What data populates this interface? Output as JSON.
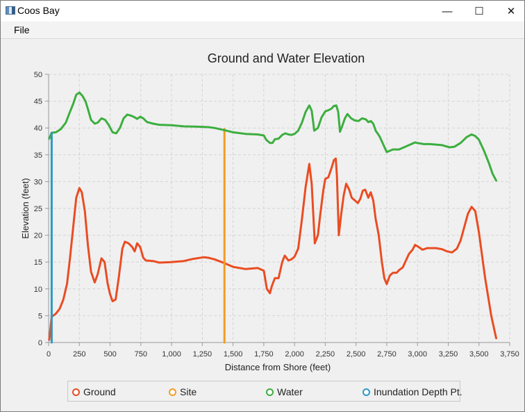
{
  "window": {
    "title": "Coos Bay",
    "min_label": "—",
    "max_label": "☐",
    "close_label": "✕"
  },
  "menu": {
    "file_label": "File"
  },
  "chart_data": {
    "type": "line",
    "title": "Ground and Water Elevation",
    "xlabel": "Distance from Shore (feet)",
    "ylabel": "Elevation (feet)",
    "xlim": [
      0,
      3750
    ],
    "ylim": [
      0,
      50
    ],
    "grid": true,
    "legend_position": "bottom",
    "x_ticks": [
      0,
      250,
      500,
      750,
      1000,
      1250,
      1500,
      1750,
      2000,
      2250,
      2500,
      2750,
      3000,
      3250,
      3500,
      3750
    ],
    "x_tick_labels": [
      "0",
      "250",
      "500",
      "750",
      "1,000",
      "1,250",
      "1,500",
      "1,750",
      "2,000",
      "2,250",
      "2,500",
      "2,750",
      "3,000",
      "3,250",
      "3,500",
      "3,750"
    ],
    "y_ticks": [
      0,
      5,
      10,
      15,
      20,
      25,
      30,
      35,
      40,
      45,
      50
    ],
    "y_tick_labels": [
      "0",
      "5",
      "10",
      "15",
      "20",
      "25",
      "30",
      "35",
      "40",
      "45",
      "50"
    ],
    "series": [
      {
        "name": "Ground",
        "color": "#ea4c22",
        "points": [
          [
            5,
            0.5
          ],
          [
            25,
            4.8
          ],
          [
            60,
            5.4
          ],
          [
            90,
            6.3
          ],
          [
            120,
            8
          ],
          [
            150,
            11
          ],
          [
            175,
            16
          ],
          [
            200,
            21.5
          ],
          [
            225,
            27
          ],
          [
            250,
            28.8
          ],
          [
            270,
            28
          ],
          [
            295,
            24.5
          ],
          [
            320,
            18
          ],
          [
            345,
            13.2
          ],
          [
            375,
            11.2
          ],
          [
            400,
            12.8
          ],
          [
            430,
            15.7
          ],
          [
            455,
            15
          ],
          [
            480,
            11
          ],
          [
            500,
            9
          ],
          [
            520,
            7.7
          ],
          [
            545,
            8
          ],
          [
            570,
            12
          ],
          [
            600,
            17.5
          ],
          [
            620,
            18.8
          ],
          [
            650,
            18.5
          ],
          [
            680,
            17.8
          ],
          [
            700,
            17
          ],
          [
            720,
            18.5
          ],
          [
            745,
            17.8
          ],
          [
            770,
            15.8
          ],
          [
            790,
            15.3
          ],
          [
            850,
            15.2
          ],
          [
            900,
            14.9
          ],
          [
            1000,
            15
          ],
          [
            1100,
            15.2
          ],
          [
            1175,
            15.6
          ],
          [
            1260,
            15.9
          ],
          [
            1300,
            15.8
          ],
          [
            1350,
            15.5
          ],
          [
            1430,
            14.8
          ],
          [
            1500,
            14.1
          ],
          [
            1600,
            13.7
          ],
          [
            1700,
            13.9
          ],
          [
            1750,
            13.4
          ],
          [
            1775,
            10
          ],
          [
            1800,
            9.2
          ],
          [
            1815,
            10.5
          ],
          [
            1840,
            12
          ],
          [
            1870,
            12
          ],
          [
            1900,
            15
          ],
          [
            1920,
            16.2
          ],
          [
            1950,
            15.3
          ],
          [
            1975,
            15.5
          ],
          [
            2000,
            16
          ],
          [
            2030,
            17.5
          ],
          [
            2060,
            23
          ],
          [
            2090,
            29
          ],
          [
            2120,
            33.3
          ],
          [
            2140,
            29.5
          ],
          [
            2165,
            18.5
          ],
          [
            2190,
            20
          ],
          [
            2210,
            24
          ],
          [
            2235,
            28.5
          ],
          [
            2250,
            30.5
          ],
          [
            2275,
            30.8
          ],
          [
            2300,
            32.5
          ],
          [
            2320,
            34
          ],
          [
            2335,
            34.3
          ],
          [
            2345,
            31
          ],
          [
            2360,
            20
          ],
          [
            2380,
            24
          ],
          [
            2400,
            27.5
          ],
          [
            2420,
            29.6
          ],
          [
            2445,
            28.5
          ],
          [
            2465,
            27
          ],
          [
            2490,
            26.5
          ],
          [
            2515,
            26
          ],
          [
            2535,
            26.8
          ],
          [
            2555,
            28.3
          ],
          [
            2575,
            28.5
          ],
          [
            2600,
            27
          ],
          [
            2620,
            28
          ],
          [
            2640,
            26.5
          ],
          [
            2660,
            23
          ],
          [
            2685,
            20
          ],
          [
            2710,
            15
          ],
          [
            2730,
            12
          ],
          [
            2750,
            10.9
          ],
          [
            2775,
            12.5
          ],
          [
            2800,
            13
          ],
          [
            2830,
            13
          ],
          [
            2850,
            13.5
          ],
          [
            2880,
            14
          ],
          [
            2900,
            15
          ],
          [
            2930,
            16.5
          ],
          [
            2960,
            17.3
          ],
          [
            2980,
            18.2
          ],
          [
            3010,
            17.8
          ],
          [
            3040,
            17.3
          ],
          [
            3080,
            17.6
          ],
          [
            3150,
            17.6
          ],
          [
            3200,
            17.4
          ],
          [
            3240,
            17
          ],
          [
            3280,
            16.8
          ],
          [
            3320,
            17.5
          ],
          [
            3350,
            19
          ],
          [
            3380,
            21.5
          ],
          [
            3410,
            24
          ],
          [
            3440,
            25.3
          ],
          [
            3470,
            24.5
          ],
          [
            3500,
            20.5
          ],
          [
            3550,
            12
          ],
          [
            3600,
            5
          ],
          [
            3640,
            0.8
          ]
        ]
      },
      {
        "name": "Site",
        "color": "#f39c20",
        "points": [
          [
            1430,
            0
          ],
          [
            1430,
            39.8
          ]
        ]
      },
      {
        "name": "Water",
        "color": "#3cae3f",
        "points": [
          [
            5,
            38
          ],
          [
            25,
            39.1
          ],
          [
            60,
            39.2
          ],
          [
            100,
            39.8
          ],
          [
            140,
            41
          ],
          [
            170,
            42.8
          ],
          [
            200,
            44.5
          ],
          [
            225,
            46.2
          ],
          [
            250,
            46.6
          ],
          [
            275,
            46
          ],
          [
            300,
            45
          ],
          [
            320,
            43.5
          ],
          [
            345,
            41.5
          ],
          [
            375,
            40.8
          ],
          [
            400,
            41
          ],
          [
            430,
            41.8
          ],
          [
            460,
            41.5
          ],
          [
            490,
            40.5
          ],
          [
            520,
            39.2
          ],
          [
            550,
            39
          ],
          [
            580,
            40
          ],
          [
            610,
            41.8
          ],
          [
            640,
            42.5
          ],
          [
            670,
            42.3
          ],
          [
            700,
            42
          ],
          [
            720,
            41.7
          ],
          [
            745,
            42.1
          ],
          [
            770,
            41.8
          ],
          [
            800,
            41.1
          ],
          [
            850,
            40.8
          ],
          [
            900,
            40.6
          ],
          [
            1000,
            40.5
          ],
          [
            1100,
            40.3
          ],
          [
            1200,
            40.25
          ],
          [
            1300,
            40.15
          ],
          [
            1350,
            40
          ],
          [
            1430,
            39.6
          ],
          [
            1500,
            39.2
          ],
          [
            1600,
            38.9
          ],
          [
            1700,
            38.8
          ],
          [
            1750,
            38.6
          ],
          [
            1770,
            37.8
          ],
          [
            1800,
            37.2
          ],
          [
            1820,
            37.2
          ],
          [
            1840,
            37.9
          ],
          [
            1870,
            38
          ],
          [
            1900,
            38.7
          ],
          [
            1925,
            39
          ],
          [
            1950,
            38.8
          ],
          [
            1975,
            38.7
          ],
          [
            2000,
            38.9
          ],
          [
            2030,
            39.5
          ],
          [
            2060,
            41
          ],
          [
            2090,
            43
          ],
          [
            2120,
            44.2
          ],
          [
            2140,
            43.2
          ],
          [
            2160,
            39.5
          ],
          [
            2190,
            40
          ],
          [
            2220,
            42
          ],
          [
            2250,
            43.1
          ],
          [
            2275,
            43.3
          ],
          [
            2300,
            43.6
          ],
          [
            2320,
            44.1
          ],
          [
            2340,
            44.2
          ],
          [
            2355,
            43
          ],
          [
            2370,
            39.3
          ],
          [
            2390,
            40.5
          ],
          [
            2410,
            41.8
          ],
          [
            2430,
            42.6
          ],
          [
            2460,
            41.8
          ],
          [
            2490,
            41.4
          ],
          [
            2520,
            41.3
          ],
          [
            2550,
            41.8
          ],
          [
            2580,
            41.6
          ],
          [
            2600,
            41.1
          ],
          [
            2620,
            41.3
          ],
          [
            2640,
            40.8
          ],
          [
            2660,
            39.5
          ],
          [
            2690,
            38.5
          ],
          [
            2710,
            37.5
          ],
          [
            2730,
            36.5
          ],
          [
            2750,
            35.5
          ],
          [
            2780,
            35.8
          ],
          [
            2800,
            36
          ],
          [
            2850,
            36
          ],
          [
            2900,
            36.5
          ],
          [
            2950,
            37
          ],
          [
            2980,
            37.3
          ],
          [
            3000,
            37.2
          ],
          [
            3050,
            37
          ],
          [
            3100,
            37
          ],
          [
            3150,
            36.9
          ],
          [
            3200,
            36.8
          ],
          [
            3260,
            36.4
          ],
          [
            3300,
            36.5
          ],
          [
            3350,
            37.2
          ],
          [
            3400,
            38.3
          ],
          [
            3440,
            38.8
          ],
          [
            3470,
            38.5
          ],
          [
            3500,
            37.8
          ],
          [
            3540,
            35.8
          ],
          [
            3580,
            33.5
          ],
          [
            3610,
            31.5
          ],
          [
            3640,
            30.2
          ]
        ]
      },
      {
        "name": "Inundation Depth Pt.",
        "color": "#2a9ac6",
        "points": [
          [
            25,
            0
          ],
          [
            25,
            39.1
          ]
        ]
      }
    ]
  }
}
